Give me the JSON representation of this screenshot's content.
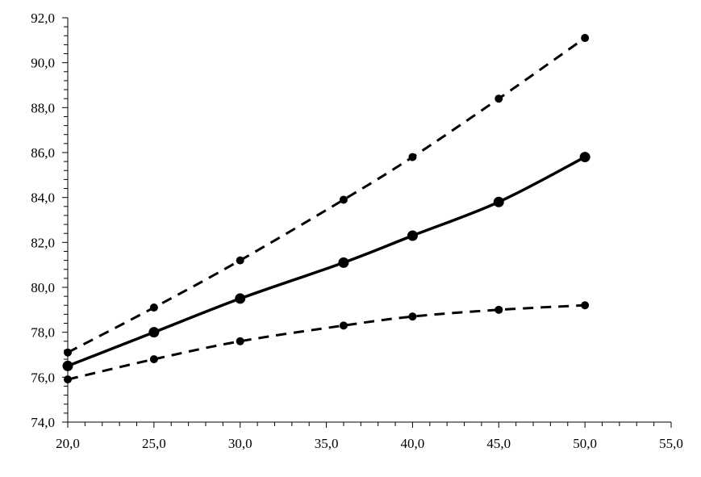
{
  "chart_data": {
    "type": "line",
    "title": "",
    "xlabel": "",
    "ylabel": "",
    "xlim": [
      20,
      55
    ],
    "ylim": [
      74,
      92
    ],
    "x_ticks": [
      "20,0",
      "25,0",
      "30,0",
      "35,0",
      "40,0",
      "45,0",
      "50,0",
      "55,0"
    ],
    "y_ticks": [
      "74,0",
      "76,0",
      "78,0",
      "80,0",
      "82,0",
      "84,0",
      "86,0",
      "88,0",
      "90,0",
      "92,0"
    ],
    "x_minor_step": 1,
    "y_minor_step": 0.4,
    "grid": false,
    "legend": "none",
    "series": [
      {
        "style": "dashed",
        "marker": "small-dot",
        "x": [
          20,
          25,
          30,
          36,
          40,
          45,
          50
        ],
        "y": [
          77.1,
          79.1,
          81.2,
          83.9,
          85.8,
          88.4,
          91.1
        ]
      },
      {
        "style": "solid",
        "marker": "large-dot",
        "x": [
          20,
          25,
          30,
          36,
          40,
          45,
          50
        ],
        "y": [
          76.5,
          78.0,
          79.5,
          81.1,
          82.3,
          83.8,
          85.8
        ]
      },
      {
        "style": "dashed",
        "marker": "small-dot",
        "x": [
          20,
          25,
          30,
          36,
          40,
          45,
          50
        ],
        "y": [
          75.9,
          76.8,
          77.6,
          78.3,
          78.7,
          79.0,
          79.2
        ]
      }
    ]
  },
  "colors": {
    "line": "#000000",
    "background": "#ffffff"
  }
}
